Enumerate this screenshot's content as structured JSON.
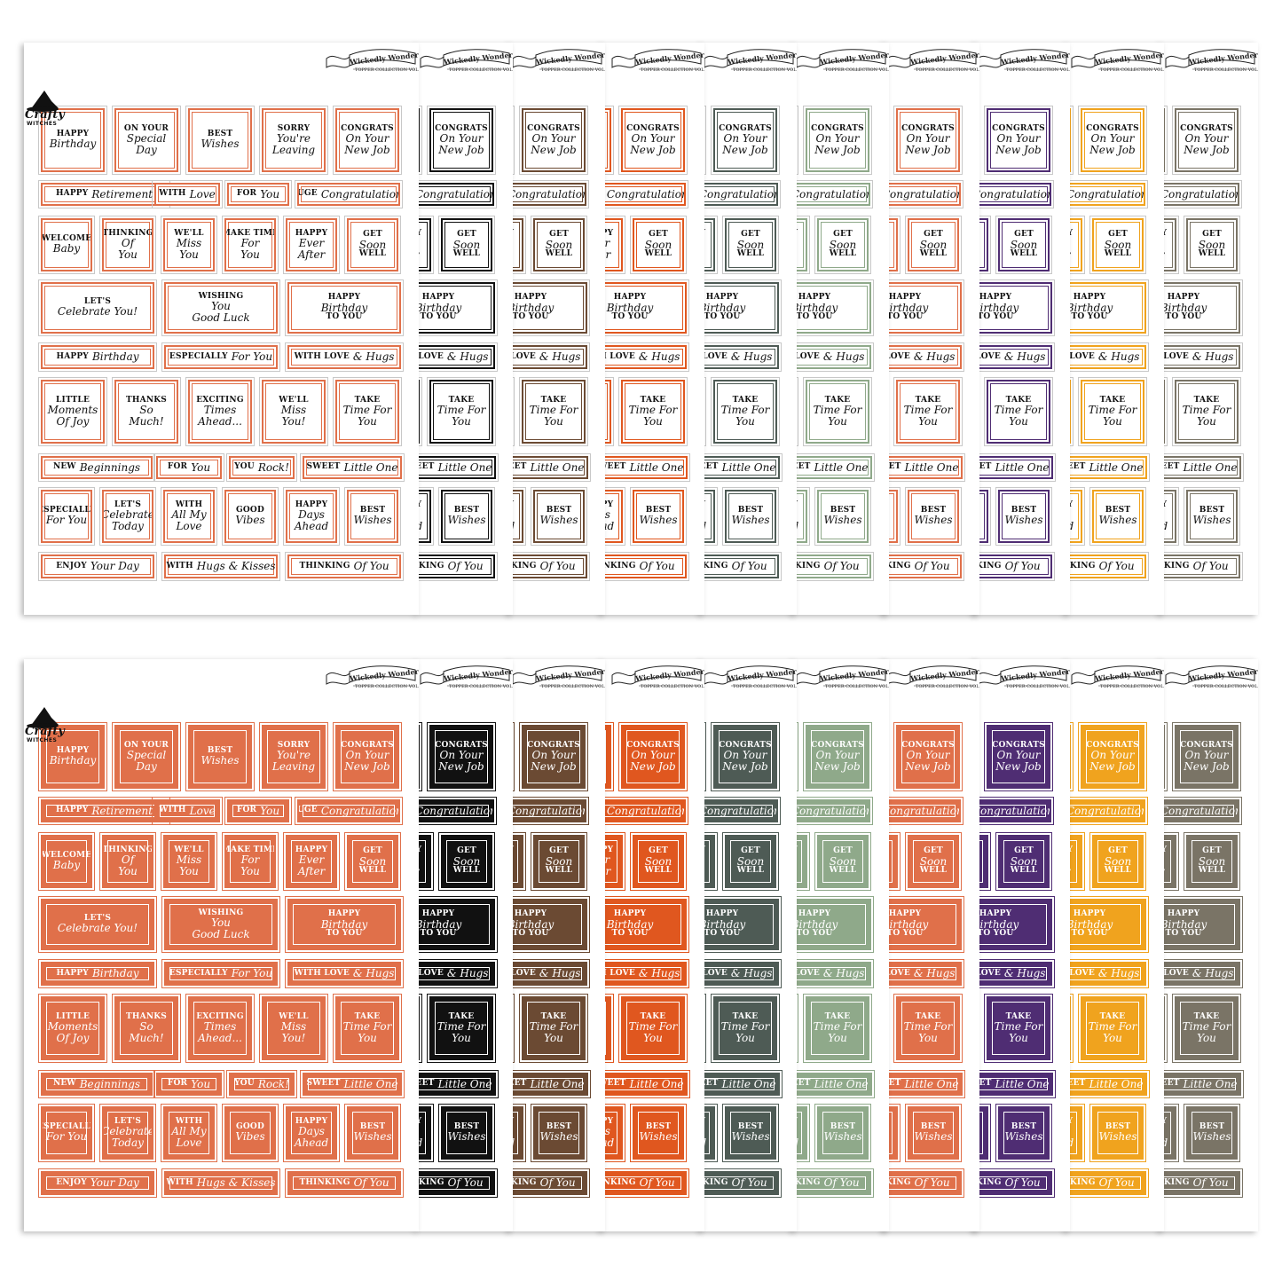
{
  "brand": {
    "name": "Crafty",
    "sub": "WITCHES"
  },
  "banner": {
    "title": "Wickedly Wonderful",
    "subtitle": "TOPPER COLLECTION VOL VI"
  },
  "colors": {
    "main": "#e0704a",
    "variants": [
      "#111111",
      "#6b4a33",
      "#e0571f",
      "#4e5b55",
      "#8fa98a",
      "#e0704a",
      "#4f2d73",
      "#f0a31e",
      "#7a7466"
    ]
  },
  "toppers": {
    "happy_birthday": [
      "HAPPY",
      "Birthday"
    ],
    "special_day": [
      "ON YOUR",
      "Special",
      "Day"
    ],
    "best_wishes": [
      "BEST",
      "Wishes"
    ],
    "sorry_leaving": [
      "SORRY",
      "You're",
      "Leaving"
    ],
    "congrats_job": [
      "CONGRATS",
      "On Your",
      "New Job"
    ],
    "happy_retirement": [
      "HAPPY",
      "Retirement"
    ],
    "with_love": [
      "WITH",
      "Love"
    ],
    "for_you": [
      "FOR",
      "You"
    ],
    "huge_congrats": [
      "HUGE",
      "Congratulations"
    ],
    "welcome_baby": [
      "WELCOME",
      "Baby"
    ],
    "thinking_of_you_sq": [
      "THINKING",
      "Of",
      "You"
    ],
    "miss_you": [
      "WE'LL",
      "Miss",
      "You"
    ],
    "make_time": [
      "MAKE TIME",
      "For",
      "You"
    ],
    "ever_after": [
      "HAPPY",
      "Ever",
      "After"
    ],
    "get_well": [
      "GET",
      "Soon",
      "WELL"
    ],
    "celebrate": [
      "LET'S",
      "Celebrate You!"
    ],
    "good_luck": [
      "WISHING",
      "You",
      "Good Luck"
    ],
    "birthday_to_you": [
      "HAPPY",
      "Birthday",
      "TO YOU"
    ],
    "happy_birthday_bar": [
      "HAPPY",
      "Birthday"
    ],
    "especially_bar": [
      "ESPECIALLY",
      "For You"
    ],
    "love_hugs": [
      "WITH LOVE",
      "& Hugs"
    ],
    "little_moments": [
      "LITTLE",
      "Moments",
      "Of Joy"
    ],
    "thanks": [
      "THANKS",
      "So",
      "Much!"
    ],
    "exciting": [
      "EXCITING",
      "Times",
      "Ahead..."
    ],
    "miss_you2": [
      "WE'LL",
      "Miss",
      "You!"
    ],
    "take_time": [
      "TAKE",
      "Time For",
      "You"
    ],
    "new_beginnings": [
      "NEW",
      "Beginnings"
    ],
    "for_you2": [
      "FOR",
      "You"
    ],
    "you_rock": [
      "YOU",
      "Rock!"
    ],
    "sweet_little": [
      "SWEET",
      "Little One"
    ],
    "especially_sq": [
      "ESPECIALLY",
      "For You"
    ],
    "celebrate_today": [
      "LET'S",
      "Celebrate",
      "Today"
    ],
    "all_my_love": [
      "WITH",
      "All My",
      "Love"
    ],
    "good_vibes": [
      "GOOD",
      "Vibes"
    ],
    "days_ahead": [
      "HAPPY",
      "Days",
      "Ahead"
    ],
    "best_wishes2": [
      "BEST",
      "Wishes"
    ],
    "enjoy_day": [
      "ENJOY",
      "Your Day"
    ],
    "hugs_kisses": [
      "WITH",
      "Hugs & Kisses"
    ],
    "thinking_bar": [
      "THINKING",
      "Of You"
    ]
  }
}
